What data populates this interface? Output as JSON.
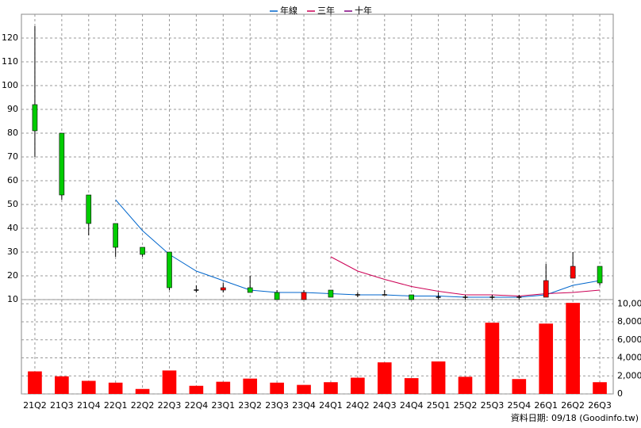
{
  "chart_data": {
    "type": "candlestick",
    "categories": [
      "21Q2",
      "21Q3",
      "21Q4",
      "22Q1",
      "22Q2",
      "22Q3",
      "22Q4",
      "23Q1",
      "23Q2",
      "23Q3",
      "23Q4",
      "24Q1",
      "24Q2",
      "24Q3",
      "24Q4",
      "25Q1",
      "25Q2",
      "25Q3",
      "25Q4",
      "26Q1",
      "26Q2",
      "26Q3"
    ],
    "open": [
      92,
      80,
      54,
      42,
      32,
      30,
      14,
      14,
      15,
      13,
      10,
      14,
      12,
      12,
      12,
      11,
      11,
      11,
      11,
      11,
      19,
      24
    ],
    "high": [
      125,
      80,
      54,
      42,
      32,
      30,
      16,
      17,
      20,
      14,
      14,
      14,
      13,
      14,
      12,
      13,
      12,
      12,
      12,
      25,
      30,
      24
    ],
    "low": [
      70,
      52,
      37,
      28,
      28,
      14,
      13,
      13,
      13,
      10,
      10,
      11,
      11,
      12,
      10,
      10,
      10,
      10,
      10,
      11,
      19,
      16
    ],
    "close": [
      81,
      54,
      42,
      32,
      29,
      15,
      14,
      15,
      13,
      10,
      13,
      11,
      12,
      12,
      10,
      11,
      11,
      11,
      11,
      18,
      24,
      17
    ],
    "up_color": "#ff0000",
    "down_color": "#00cc00",
    "flat_color": "#000000",
    "series": [
      {
        "name": "年線",
        "color": "#0066cc",
        "values": [
          null,
          null,
          null,
          52,
          39,
          29,
          22,
          18,
          14,
          13,
          13,
          12.5,
          12,
          12,
          11.5,
          11.5,
          11,
          11,
          11,
          12,
          16,
          18
        ]
      },
      {
        "name": "三年",
        "color": "#cc0055",
        "values": [
          null,
          null,
          null,
          null,
          null,
          null,
          null,
          null,
          null,
          null,
          null,
          28,
          22,
          18.5,
          15.5,
          13.5,
          12,
          12,
          11.5,
          12.5,
          13,
          14
        ]
      },
      {
        "name": "十年",
        "color": "#800080",
        "values": [
          null,
          null,
          null,
          null,
          null,
          null,
          null,
          null,
          null,
          null,
          null,
          null,
          null,
          null,
          null,
          null,
          null,
          null,
          null,
          null,
          null,
          null
        ]
      }
    ],
    "ylim": [
      10,
      130
    ],
    "yticks": [
      10,
      20,
      30,
      40,
      50,
      60,
      70,
      80,
      90,
      100,
      110,
      120
    ],
    "grid": true,
    "volume": {
      "color": "#ff0000",
      "values": [
        2500,
        1950,
        1450,
        1250,
        550,
        2600,
        900,
        1350,
        1700,
        1250,
        1000,
        1300,
        1800,
        3500,
        1750,
        3600,
        1900,
        7900,
        1650,
        7800,
        10100,
        1300
      ],
      "ylim": [
        0,
        10200
      ],
      "yticks": [
        0,
        {
          "value": 2000,
          "label": "2,000"
        },
        {
          "value": 4000,
          "label": "4,000"
        },
        {
          "value": 6000,
          "label": "6,000"
        },
        {
          "value": 8000,
          "label": "8,000"
        },
        {
          "value": 10000,
          "label": "10,000"
        }
      ]
    },
    "source": "資料日期: 09/18 (Goodinfo.tw)"
  }
}
